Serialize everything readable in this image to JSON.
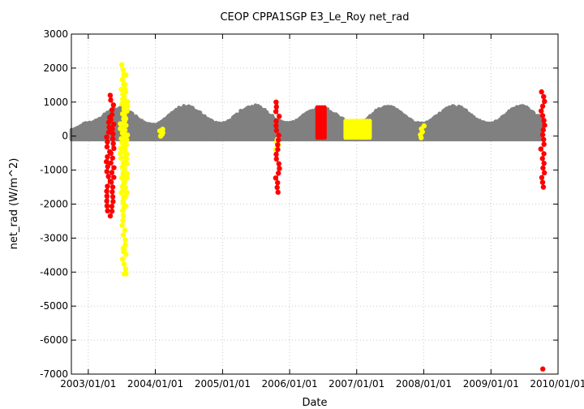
{
  "chart_data": {
    "type": "scatter",
    "title": "CEOP CPPA1SGP E3_Le_Roy  net_rad",
    "xlabel": "Date",
    "ylabel": "net_rad (W/m^2)",
    "x_tick_labels": [
      "2003/01/01",
      "2004/01/01",
      "2005/01/01",
      "2006/01/01",
      "2007/01/01",
      "2008/01/01",
      "2009/01/01",
      "2010/01/01"
    ],
    "y_tick_labels": [
      "3000",
      "2000",
      "1000",
      "0",
      "-1000",
      "-2000",
      "-3000",
      "-4000",
      "-5000",
      "-6000",
      "-7000"
    ],
    "xlim": [
      "2002/10/01",
      "2010/01/01"
    ],
    "ylim": [
      -7000,
      3000
    ],
    "grid": true,
    "legend": "none",
    "series": [
      {
        "color": "#808080",
        "kind": "continuous-band",
        "daily_max_envelope": [
          [
            "2002/10/01",
            200
          ],
          [
            "2003/01/01",
            400
          ],
          [
            "2003/06/15",
            850
          ],
          [
            "2003/12/20",
            350
          ],
          [
            "2004/06/15",
            900
          ],
          [
            "2004/12/20",
            380
          ],
          [
            "2005/06/15",
            920
          ],
          [
            "2005/12/20",
            400
          ],
          [
            "2006/06/15",
            850
          ],
          [
            "2006/12/20",
            400
          ],
          [
            "2007/06/15",
            880
          ],
          [
            "2007/12/20",
            380
          ],
          [
            "2008/06/15",
            900
          ],
          [
            "2008/12/20",
            380
          ],
          [
            "2009/06/15",
            900
          ],
          [
            "2009/10/01",
            600
          ]
        ],
        "daily_min_value": -100
      },
      {
        "color": "#ffff00",
        "kind": "flagged",
        "segments": [
          {
            "x": "2003/07/05",
            "y": [
              2100,
              -2100
            ]
          },
          {
            "x": "2003/07/15",
            "y": [
              1800,
              -4050
            ]
          },
          {
            "x": "2003/07/25",
            "y": [
              1300,
              -1800
            ]
          },
          {
            "x": "2004/02/01",
            "y": [
              200,
              0
            ]
          },
          {
            "x": "2005/10/25",
            "y": [
              -100,
              -400
            ]
          },
          {
            "x": "2006/11/01",
            "x_end": "2007/03/15",
            "y": [
              450,
              -50
            ]
          },
          {
            "x": "2007/12/25",
            "y": [
              300,
              -50
            ]
          }
        ],
        "isolated_points": [
          {
            "x": "2003/07/10",
            "y": -3300
          },
          {
            "x": "2003/07/12",
            "y": -3400
          },
          {
            "x": "2003/07/15",
            "y": -4050
          }
        ]
      },
      {
        "color": "#ff0000",
        "kind": "flagged",
        "segments": [
          {
            "x": "2003/04/20",
            "y": [
              550,
              -2200
            ]
          },
          {
            "x": "2003/05/10",
            "y": [
              1200,
              -2350
            ]
          },
          {
            "x": "2005/10/28",
            "y": [
              1000,
              -1650
            ]
          },
          {
            "x": "2006/06/01",
            "x_end": "2006/07/15",
            "y": [
              850,
              -50
            ]
          },
          {
            "x": "2009/10/10",
            "y": [
              1300,
              -1500
            ]
          }
        ],
        "isolated_points": [
          {
            "x": "2009/10/10",
            "y": -6850
          }
        ]
      }
    ]
  }
}
